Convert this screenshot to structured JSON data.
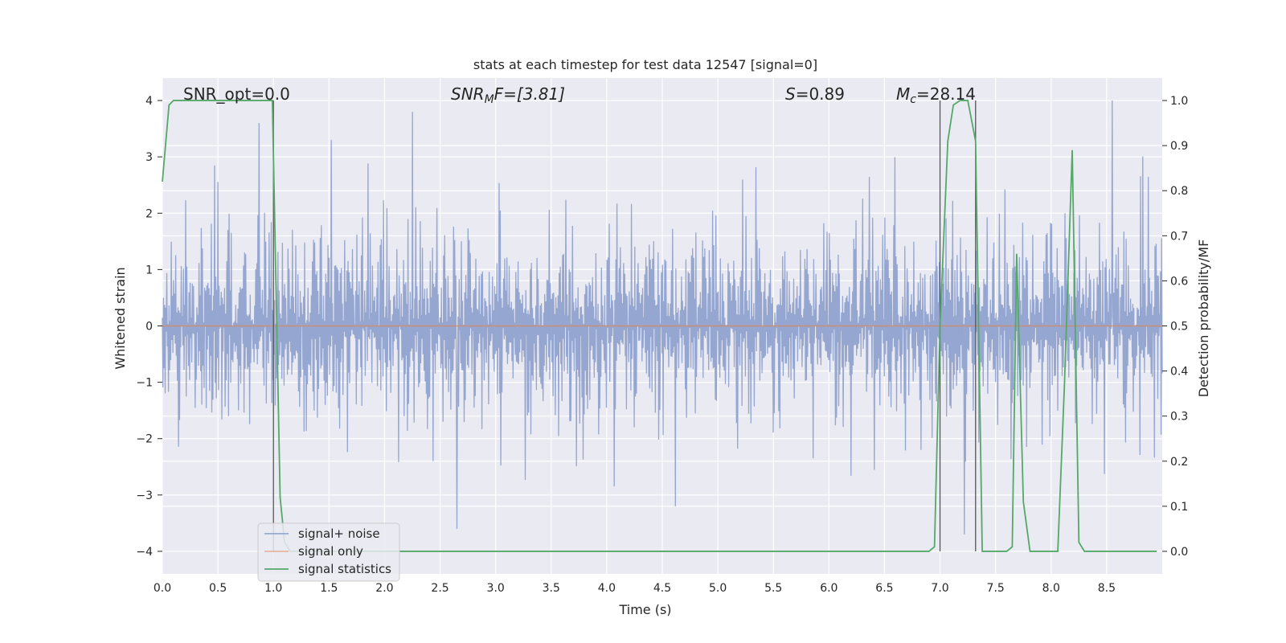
{
  "chart_data": {
    "type": "line",
    "title": "stats at each timestep for test data 12547 [signal=0]",
    "xlabel": "Time (s)",
    "ylabel": "Whitened strain",
    "y2label": "Detection probability/MF",
    "xlim": [
      0.0,
      9.0
    ],
    "ylim": [
      -4.4,
      4.4
    ],
    "y2lim": [
      -0.05,
      1.05
    ],
    "xticks": [
      0.0,
      0.5,
      1.0,
      1.5,
      2.0,
      2.5,
      3.0,
      3.5,
      4.0,
      4.5,
      5.0,
      5.5,
      6.0,
      6.5,
      7.0,
      7.5,
      8.0,
      8.5
    ],
    "xtick_labels": [
      "0.0",
      "0.5",
      "1.0",
      "1.5",
      "2.0",
      "2.5",
      "3.0",
      "3.5",
      "4.0",
      "4.5",
      "5.0",
      "5.5",
      "6.0",
      "6.5",
      "7.0",
      "7.5",
      "8.0",
      "8.5"
    ],
    "yticks": [
      -4,
      -3,
      -2,
      -1,
      0,
      1,
      2,
      3,
      4
    ],
    "ytick_labels": [
      "−4",
      "−3",
      "−2",
      "−1",
      "0",
      "1",
      "2",
      "3",
      "4"
    ],
    "y2ticks": [
      0.0,
      0.1,
      0.2,
      0.3,
      0.4,
      0.5,
      0.6,
      0.7,
      0.8,
      0.9,
      1.0
    ],
    "y2tick_labels": [
      "0.0",
      "0.1",
      "0.2",
      "0.3",
      "0.4",
      "0.5",
      "0.6",
      "0.7",
      "0.8",
      "0.9",
      "1.0"
    ],
    "grid": true,
    "legend_position": "lower-left",
    "annotations": {
      "snr_opt": "SNR_opt=0.0",
      "snr_mf_main": "SNR",
      "snr_mf_sub": "M",
      "snr_mf_rest": "F=[3.81]",
      "s_main": "S",
      "s_rest": "=0.89",
      "mc_main": "M",
      "mc_sub": "c",
      "mc_rest": "=28.14"
    },
    "vlines": [
      1.0,
      7.0,
      7.32
    ],
    "series": [
      {
        "name": "signal+ noise",
        "color": "#8c9fcc",
        "axis": "left",
        "noise_band": {
          "typical_amplitude": 1.7,
          "peak_amplitude": 4.0,
          "samples": 1800
        },
        "notable_peaks": [
          [
            0.87,
            3.6
          ],
          [
            1.52,
            3.3
          ],
          [
            2.25,
            3.8
          ],
          [
            8.55,
            4.0
          ],
          [
            2.65,
            -3.6
          ],
          [
            7.22,
            -3.7
          ],
          [
            4.62,
            -3.2
          ]
        ]
      },
      {
        "name": "signal only",
        "color": "#dd8452",
        "axis": "left",
        "x": [
          0.0,
          9.0
        ],
        "y": [
          0.0,
          0.0
        ]
      },
      {
        "name": "signal statistics",
        "color": "#55a868",
        "axis": "right",
        "x": [
          0.0,
          0.06,
          0.1,
          0.15,
          0.5,
          0.99,
          1.03,
          1.06,
          1.1,
          1.15,
          1.5,
          2.0,
          3.0,
          4.0,
          5.0,
          6.0,
          6.9,
          6.95,
          7.0,
          7.07,
          7.12,
          7.18,
          7.25,
          7.32,
          7.38,
          7.5,
          7.6,
          7.65,
          7.69,
          7.75,
          7.81,
          8.0,
          8.06,
          8.12,
          8.19,
          8.25,
          8.3,
          8.5,
          8.95
        ],
        "y": [
          0.82,
          0.99,
          1.0,
          1.0,
          1.0,
          1.0,
          0.5,
          0.12,
          0.02,
          0.0,
          0.0,
          0.0,
          0.0,
          0.0,
          0.0,
          0.0,
          0.0,
          0.01,
          0.5,
          0.91,
          0.99,
          1.0,
          1.0,
          0.91,
          0.0,
          0.0,
          0.0,
          0.01,
          0.66,
          0.11,
          0.0,
          0.0,
          0.0,
          0.37,
          0.89,
          0.02,
          0.0,
          0.0,
          0.0
        ]
      }
    ]
  }
}
